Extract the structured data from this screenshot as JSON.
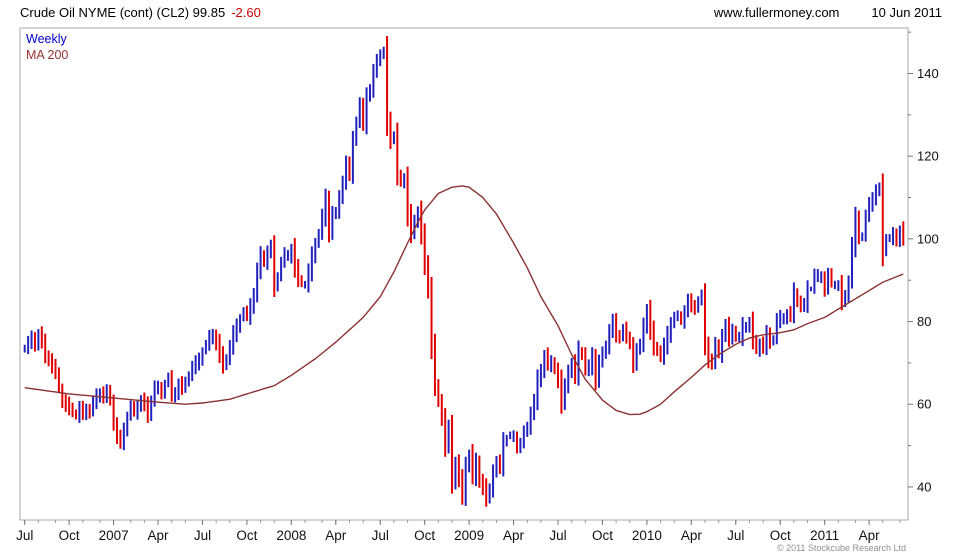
{
  "header": {
    "title": "Crude Oil NYME (cont) (CL2) 99.85",
    "change": "-2.60",
    "website": "www.fullermoney.com",
    "date": "10 Jun 2011"
  },
  "legend": {
    "series1": "Weekly",
    "series2": "MA 200"
  },
  "footer": {
    "copyright": "© 2011 Stockcube Research Ltd"
  },
  "chart_data": {
    "type": "candlestick",
    "title": "Crude Oil NYME (cont) (CL2)",
    "xlabel": "",
    "ylabel": "",
    "interval": "weekly",
    "start_label": "Jul 2006",
    "end_label": "10 Jun 2011",
    "last_close": 99.85,
    "last_change": -2.6,
    "ylim": [
      32,
      151
    ],
    "y_ticks": [
      40,
      60,
      80,
      100,
      120,
      140
    ],
    "x_ticks": [
      {
        "label": "Jul",
        "week": 0
      },
      {
        "label": "Oct",
        "week": 13
      },
      {
        "label": "2007",
        "week": 26
      },
      {
        "label": "Apr",
        "week": 39
      },
      {
        "label": "Jul",
        "week": 52
      },
      {
        "label": "Oct",
        "week": 65
      },
      {
        "label": "2008",
        "week": 78
      },
      {
        "label": "Apr",
        "week": 91
      },
      {
        "label": "Jul",
        "week": 104
      },
      {
        "label": "Oct",
        "week": 117
      },
      {
        "label": "2009",
        "week": 130
      },
      {
        "label": "Apr",
        "week": 143
      },
      {
        "label": "Jul",
        "week": 156
      },
      {
        "label": "Oct",
        "week": 169
      },
      {
        "label": "2010",
        "week": 182
      },
      {
        "label": "Apr",
        "week": 195
      },
      {
        "label": "Jul",
        "week": 208
      },
      {
        "label": "Oct",
        "week": 221
      },
      {
        "label": "2011",
        "week": 234
      },
      {
        "label": "Apr",
        "week": 247
      }
    ],
    "month_start_weeks": [
      0,
      4,
      9,
      13,
      17,
      22,
      26,
      31,
      35,
      39,
      43,
      47,
      52,
      56,
      60,
      65,
      69,
      73,
      78,
      82,
      87,
      91,
      95,
      99,
      104,
      108,
      112,
      117,
      121,
      125,
      130,
      134,
      138,
      143,
      147,
      151,
      156,
      160,
      164,
      169,
      173,
      177,
      182,
      186,
      190,
      195,
      199,
      203,
      208,
      212,
      216,
      221,
      225,
      229,
      234,
      238,
      243,
      247,
      251,
      256
    ],
    "weekly_closes": [
      74,
      75,
      76,
      74,
      77,
      75,
      72,
      71,
      69,
      67,
      64,
      61,
      60,
      59,
      58,
      57,
      59,
      58,
      59,
      58,
      60,
      62,
      63,
      62,
      63,
      61,
      55,
      52,
      51,
      54,
      57,
      59,
      58,
      60,
      61,
      60,
      57,
      61,
      64,
      64,
      63,
      65,
      66,
      62,
      63,
      65,
      64,
      65,
      67,
      69,
      70,
      71,
      73,
      74,
      76,
      77,
      75,
      72,
      69,
      71,
      74,
      77,
      79,
      81,
      82,
      81,
      84,
      87,
      92,
      96,
      94,
      97,
      98,
      89,
      91,
      94,
      96,
      96,
      98,
      93,
      90,
      89,
      89,
      92,
      96,
      99,
      101,
      105,
      110,
      102,
      106,
      106,
      110,
      114,
      118,
      116,
      124,
      128,
      132,
      128,
      135,
      136,
      140,
      143,
      145,
      145,
      129,
      124,
      125,
      115,
      114,
      115,
      106,
      101,
      104,
      107,
      101,
      94,
      88,
      74,
      64,
      61,
      57,
      50,
      54,
      41,
      46,
      42,
      38,
      45,
      48,
      42,
      46,
      42,
      40,
      37,
      39,
      44,
      46,
      45,
      51,
      52,
      52,
      52,
      50,
      51,
      53,
      54,
      58,
      61,
      66,
      68,
      72,
      69,
      70,
      69,
      66,
      60,
      64,
      68,
      70,
      67,
      73,
      72,
      68,
      69,
      72,
      66,
      70,
      72,
      74,
      78,
      80,
      77,
      76,
      78,
      76,
      75,
      70,
      73,
      74,
      79,
      83,
      78,
      74,
      73,
      71,
      74,
      77,
      80,
      81,
      81,
      80,
      83,
      85,
      84,
      83,
      85,
      86,
      75,
      71,
      70,
      74,
      72,
      77,
      79,
      76,
      78,
      76,
      76,
      79,
      79,
      80,
      75,
      73,
      75,
      74,
      77,
      75,
      76,
      80,
      81,
      81,
      82,
      81,
      87,
      85,
      84,
      84,
      88,
      88,
      91,
      91,
      91,
      88,
      91,
      89,
      89,
      89,
      85,
      86,
      90,
      98,
      105,
      101,
      101,
      105,
      108,
      110,
      112,
      112,
      97,
      100,
      100,
      101,
      100,
      102.45,
      99.85
    ],
    "ma200": {
      "weeks": [
        0,
        13,
        26,
        39,
        47,
        52,
        60,
        65,
        73,
        78,
        85,
        91,
        99,
        104,
        108,
        112,
        115,
        117,
        121,
        125,
        128,
        130,
        134,
        138,
        143,
        147,
        151,
        156,
        160,
        164,
        169,
        173,
        177,
        180,
        182,
        186,
        190,
        195,
        199,
        203,
        208,
        212,
        216,
        221,
        225,
        229,
        234,
        238,
        243,
        247,
        251,
        257
      ],
      "values": [
        64,
        62.5,
        61.5,
        60.5,
        60,
        60.3,
        61.2,
        62.5,
        64.5,
        67,
        71,
        75,
        81,
        86,
        92,
        99,
        104,
        107,
        111,
        112.5,
        112.8,
        112.5,
        110,
        106,
        99,
        93,
        86,
        79,
        72,
        66,
        61,
        58.5,
        57.5,
        57.6,
        58.2,
        60,
        63,
        66.5,
        69.5,
        72,
        74.5,
        76,
        76.8,
        77.3,
        78,
        79.5,
        81,
        83,
        85.5,
        87.5,
        89.5,
        91.5
      ]
    },
    "colors": {
      "up": "#2121bd",
      "down": "#e00000",
      "ma": "#8b3232",
      "change_text": "#cc0000",
      "legend_weekly": "#0000cc",
      "legend_ma": "#993333",
      "border": "#aaaaaa"
    }
  }
}
